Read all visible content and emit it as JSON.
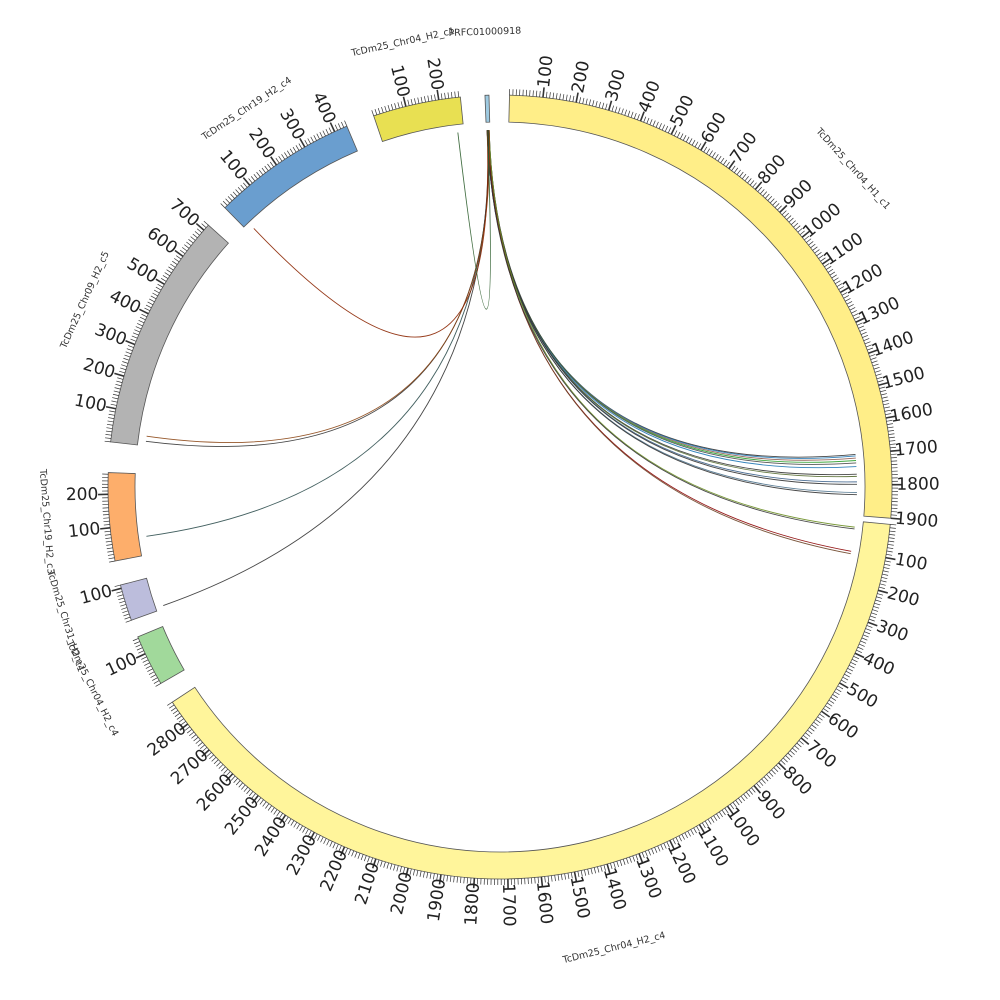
{
  "chart_data": {
    "type": "circos",
    "title": "",
    "tick_unit": "kb",
    "sequences": [
      {
        "name": "PRFC01000918",
        "length": 12,
        "color": "#9ecae1"
      },
      {
        "name": "TcDm25_Chr04_H1_c1",
        "length": 1900,
        "color": "#ffee88"
      },
      {
        "name": "TcDm25_Chr04_H2_c4",
        "length": 2880,
        "color": "#fff59b"
      },
      {
        "name": "TcDm25_Chr04_H2_c4",
        "length": 155,
        "color": "#a1d99b"
      },
      {
        "name": "TcDm25_Chr31_H2_c1",
        "length": 110,
        "color": "#bcbddc"
      },
      {
        "name": "TcDm25_Chr19_H2_c3",
        "length": 265,
        "color": "#fdae6b"
      },
      {
        "name": "TcDm25_Chr09_H2_c5",
        "length": 720,
        "color": "#b3b3b3"
      },
      {
        "name": "TcDm25_Chr19_H2_c4",
        "length": 440,
        "color": "#6a9ecf"
      },
      {
        "name": "TcDm25_Chr04_H2_c1",
        "length": 265,
        "color": "#e8e052"
      }
    ],
    "links": [
      {
        "target": "TcDm25_Chr04_H1_c1",
        "pos": 1700,
        "color": "#333333"
      },
      {
        "target": "TcDm25_Chr04_H1_c1",
        "pos": 1705,
        "color": "#1f77b4"
      },
      {
        "target": "TcDm25_Chr04_H1_c1",
        "pos": 1712,
        "color": "#8c564b"
      },
      {
        "target": "TcDm25_Chr04_H1_c1",
        "pos": 1720,
        "color": "#2ca02c"
      },
      {
        "target": "TcDm25_Chr04_H1_c1",
        "pos": 1728,
        "color": "#444444"
      },
      {
        "target": "TcDm25_Chr04_H1_c1",
        "pos": 1740,
        "color": "#1f77b4"
      },
      {
        "target": "TcDm25_Chr04_H1_c1",
        "pos": 1765,
        "color": "#333333"
      },
      {
        "target": "TcDm25_Chr04_H1_c1",
        "pos": 1772,
        "color": "#556b2f"
      },
      {
        "target": "TcDm25_Chr04_H1_c1",
        "pos": 1790,
        "color": "#3a5f8a"
      },
      {
        "target": "TcDm25_Chr04_H1_c1",
        "pos": 1798,
        "color": "#333333"
      },
      {
        "target": "TcDm25_Chr04_H1_c1",
        "pos": 1825,
        "color": "#4a708b"
      },
      {
        "target": "TcDm25_Chr04_H1_c1",
        "pos": 1832,
        "color": "#333333"
      },
      {
        "target": "TcDm25_Chr04_H2_c4",
        "pos": 100,
        "color": "#8b0000"
      },
      {
        "target": "TcDm25_Chr04_H2_c4",
        "pos": 108,
        "color": "#6b4226"
      },
      {
        "target": "TcDm25_Chr04_H2_c4",
        "pos": 20,
        "color": "#6b8e23"
      },
      {
        "target": "TcDm25_Chr04_H2_c4",
        "pos": 26,
        "color": "#333333"
      },
      {
        "target": "TcDm25_Chr31_H2_c1",
        "pos": 10,
        "color": "#333333"
      },
      {
        "target": "TcDm25_Chr19_H2_c3",
        "pos": 60,
        "color": "#2f4f4f"
      },
      {
        "target": "TcDm25_Chr09_H2_c5",
        "pos": 15,
        "color": "#333333"
      },
      {
        "target": "TcDm25_Chr09_H2_c5",
        "pos": 32,
        "color": "#8b4513"
      },
      {
        "target": "TcDm25_Chr19_H2_c4",
        "pos": 20,
        "color": "#8b2500"
      },
      {
        "target": "TcDm25_Chr04_H2_c1",
        "pos": 245,
        "color": "#2e5e2e"
      }
    ]
  }
}
